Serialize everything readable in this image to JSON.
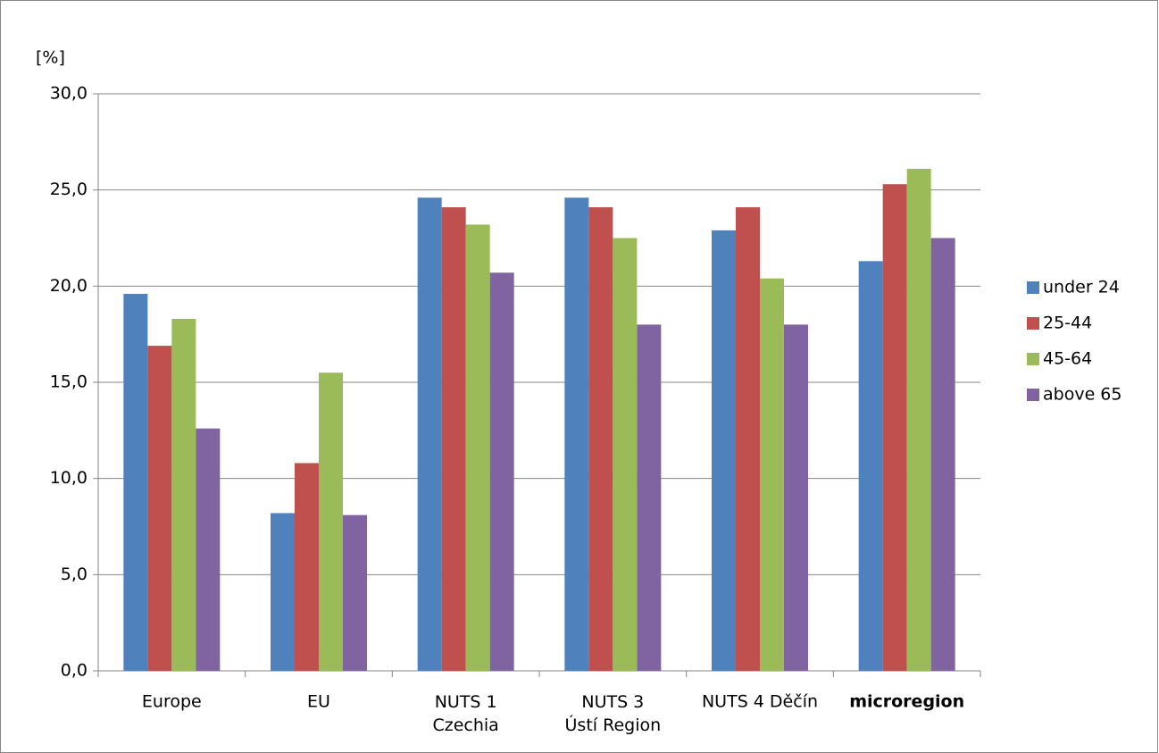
{
  "chart_data": {
    "type": "bar",
    "y_label": "[%]",
    "categories": [
      "Europe",
      "EU",
      "NUTS 1\nCzechia",
      "NUTS 3\nÚstí Region",
      "NUTS 4 Děčín",
      "microregion"
    ],
    "series": [
      {
        "name": "under 24",
        "color": "#4f81bd",
        "values": [
          19.6,
          8.2,
          24.6,
          24.6,
          22.9,
          21.3
        ]
      },
      {
        "name": "25-44",
        "color": "#c0504d",
        "values": [
          16.9,
          10.8,
          24.1,
          24.1,
          24.1,
          25.3
        ]
      },
      {
        "name": "45-64",
        "color": "#9bbb59",
        "values": [
          18.3,
          15.5,
          23.2,
          22.5,
          20.4,
          26.1
        ]
      },
      {
        "name": "above 65",
        "color": "#8064a2",
        "values": [
          12.6,
          8.1,
          20.7,
          18.0,
          18.0,
          22.5
        ]
      }
    ],
    "ylim": [
      0,
      30
    ],
    "yticks": [
      {
        "value": 0,
        "label": "0,0"
      },
      {
        "value": 5,
        "label": "5,0"
      },
      {
        "value": 10,
        "label": "10,0"
      },
      {
        "value": 15,
        "label": "15,0"
      },
      {
        "value": 20,
        "label": "20,0"
      },
      {
        "value": 25,
        "label": "25,0"
      },
      {
        "value": 30,
        "label": "30,0"
      }
    ],
    "grid": true,
    "legend": "right"
  }
}
